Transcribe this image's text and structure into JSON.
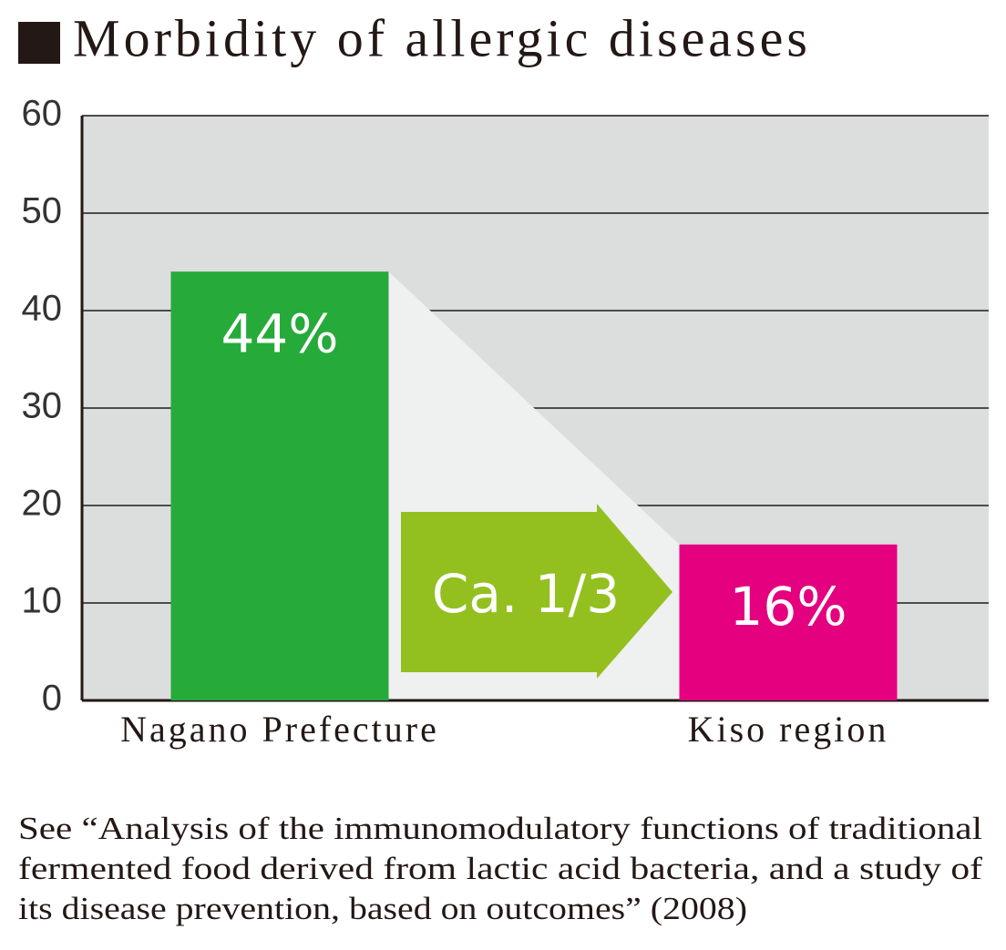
{
  "chart_data": {
    "type": "bar",
    "title": "Morbidity of allergic diseases",
    "categories": [
      "Nagano Prefecture",
      "Kiso region"
    ],
    "values": [
      44,
      16
    ],
    "value_labels": [
      "44%",
      "16%"
    ],
    "colors": [
      "#26aa3a",
      "#e4007f"
    ],
    "ylim": [
      0,
      60
    ],
    "yticks": [
      0,
      10,
      20,
      30,
      40,
      50,
      60
    ],
    "grid": true,
    "annotation": "Ca. 1/3",
    "footnote": [
      "See “Analysis of the immunomodulatory functions of traditional",
      "fermented food derived from lactic acid bacteria, and a study of",
      "its disease prevention, based on outcomes” (2008)"
    ]
  }
}
